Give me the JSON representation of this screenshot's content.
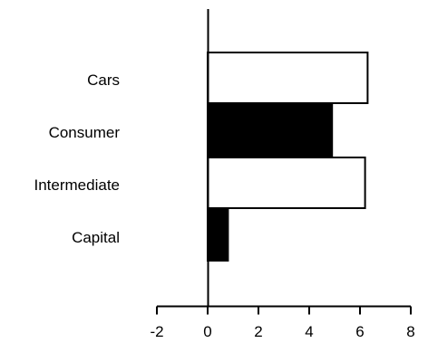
{
  "chart_data": {
    "type": "bar",
    "orientation": "horizontal",
    "title": "",
    "xlabel": "",
    "ylabel": "",
    "categories": [
      "Cars",
      "Consumer",
      "Intermediate",
      "Capital"
    ],
    "values": [
      6.3,
      4.9,
      6.2,
      0.8
    ],
    "bar_colors": [
      "#ffffff",
      "#000000",
      "#ffffff",
      "#000000"
    ],
    "xlim": [
      -2,
      8
    ],
    "xticks": [
      -2,
      0,
      2,
      4,
      6,
      8
    ],
    "xtick_labels": [
      "-2",
      "0",
      "2",
      "4",
      "6",
      "8"
    ],
    "grid": false,
    "legend": "none"
  }
}
